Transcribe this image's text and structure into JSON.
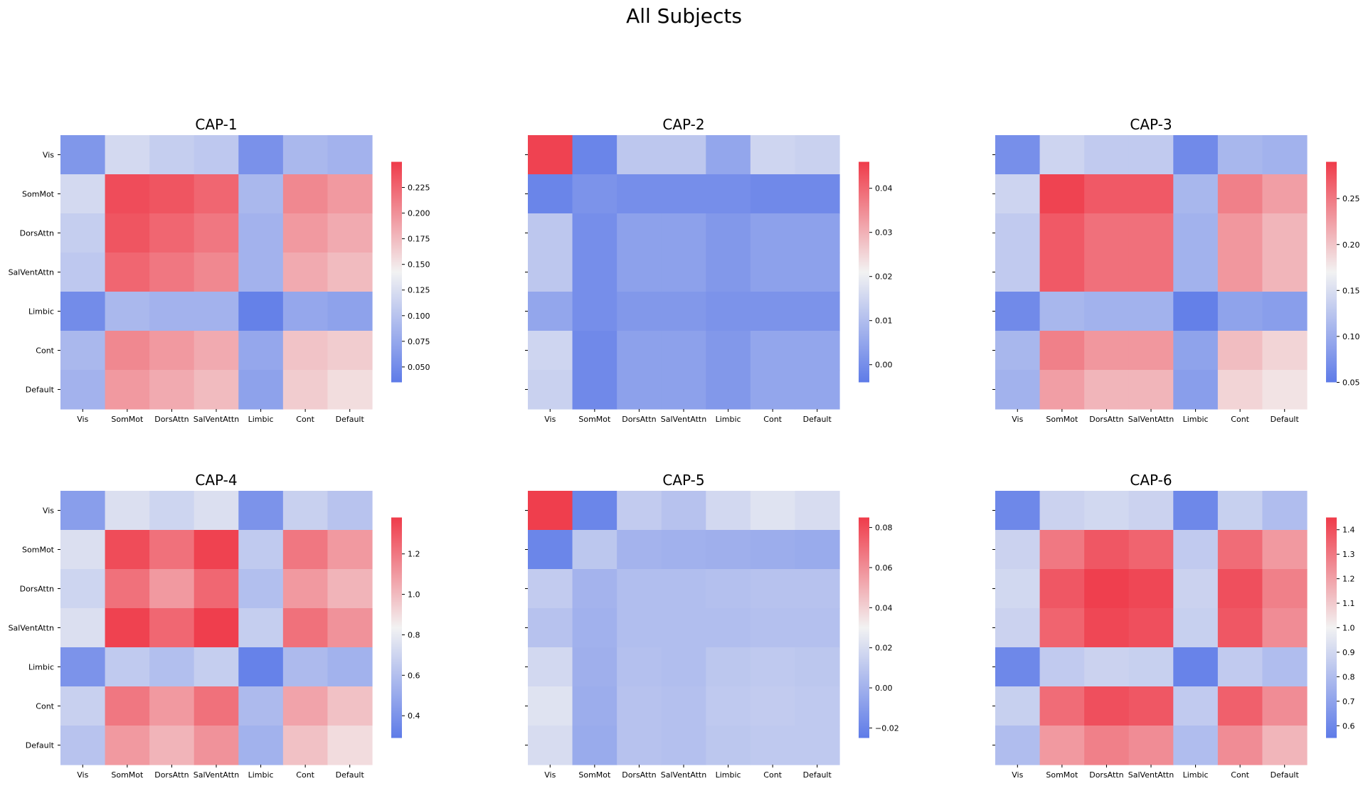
{
  "suptitle": "All Subjects",
  "colormap": {
    "low": "#5e7be8",
    "mid": "#f2f2f2",
    "high": "#ef3b4a"
  },
  "chart_data": [
    {
      "type": "heatmap",
      "title": "CAP-1",
      "labels": [
        "Vis",
        "SomMot",
        "DorsAttn",
        "SalVentAttn",
        "Limbic",
        "Cont",
        "Default"
      ],
      "vmin": 0.035,
      "vmax": 0.25,
      "colorbar_ticks": [
        0.05,
        0.075,
        0.1,
        0.125,
        0.15,
        0.175,
        0.2,
        0.225
      ],
      "colorbar_tick_labels": [
        "0.050",
        "0.075",
        "0.100",
        "0.125",
        "0.150",
        "0.175",
        "0.200",
        "0.225"
      ],
      "values": [
        [
          0.06,
          0.12,
          0.11,
          0.105,
          0.055,
          0.09,
          0.085
        ],
        [
          0.12,
          0.24,
          0.235,
          0.225,
          0.09,
          0.205,
          0.195
        ],
        [
          0.11,
          0.235,
          0.225,
          0.215,
          0.085,
          0.195,
          0.185
        ],
        [
          0.105,
          0.225,
          0.215,
          0.205,
          0.085,
          0.185,
          0.175
        ],
        [
          0.05,
          0.09,
          0.085,
          0.085,
          0.04,
          0.075,
          0.07
        ],
        [
          0.09,
          0.205,
          0.195,
          0.185,
          0.075,
          0.17,
          0.165
        ],
        [
          0.085,
          0.195,
          0.185,
          0.175,
          0.07,
          0.165,
          0.155
        ]
      ]
    },
    {
      "type": "heatmap",
      "title": "CAP-2",
      "labels": [
        "Vis",
        "SomMot",
        "DorsAttn",
        "SalVentAttn",
        "Limbic",
        "Cont",
        "Default"
      ],
      "vmin": -0.004,
      "vmax": 0.046,
      "colorbar_ticks": [
        0.0,
        0.01,
        0.02,
        0.03,
        0.04
      ],
      "colorbar_tick_labels": [
        "0.00",
        "0.01",
        "0.02",
        "0.03",
        "0.04"
      ],
      "values": [
        [
          0.045,
          -0.002,
          0.012,
          0.012,
          0.005,
          0.015,
          0.014
        ],
        [
          -0.002,
          0.001,
          0.0,
          0.0,
          0.0,
          -0.001,
          -0.001
        ],
        [
          0.012,
          0.0,
          0.004,
          0.004,
          0.002,
          0.004,
          0.004
        ],
        [
          0.012,
          0.0,
          0.004,
          0.004,
          0.002,
          0.004,
          0.004
        ],
        [
          0.005,
          0.0,
          0.002,
          0.002,
          0.001,
          0.001,
          0.001
        ],
        [
          0.015,
          -0.001,
          0.004,
          0.004,
          0.002,
          0.005,
          0.005
        ],
        [
          0.014,
          -0.001,
          0.004,
          0.004,
          0.002,
          0.005,
          0.005
        ]
      ]
    },
    {
      "type": "heatmap",
      "title": "CAP-3",
      "labels": [
        "Vis",
        "SomMot",
        "DorsAttn",
        "SalVentAttn",
        "Limbic",
        "Cont",
        "Default"
      ],
      "vmin": 0.05,
      "vmax": 0.29,
      "colorbar_ticks": [
        0.05,
        0.1,
        0.15,
        0.2,
        0.25
      ],
      "colorbar_tick_labels": [
        "0.05",
        "0.10",
        "0.15",
        "0.20",
        "0.25"
      ],
      "values": [
        [
          0.07,
          0.14,
          0.13,
          0.13,
          0.065,
          0.11,
          0.105
        ],
        [
          0.14,
          0.285,
          0.27,
          0.27,
          0.11,
          0.245,
          0.225
        ],
        [
          0.13,
          0.27,
          0.255,
          0.255,
          0.105,
          0.23,
          0.21
        ],
        [
          0.13,
          0.27,
          0.255,
          0.255,
          0.105,
          0.23,
          0.21
        ],
        [
          0.065,
          0.11,
          0.105,
          0.105,
          0.055,
          0.09,
          0.085
        ],
        [
          0.11,
          0.245,
          0.23,
          0.23,
          0.09,
          0.205,
          0.19
        ],
        [
          0.105,
          0.225,
          0.21,
          0.21,
          0.085,
          0.19,
          0.18
        ]
      ]
    },
    {
      "type": "heatmap",
      "title": "CAP-4",
      "labels": [
        "Vis",
        "SomMot",
        "DorsAttn",
        "SalVentAttn",
        "Limbic",
        "Cont",
        "Default"
      ],
      "vmin": 0.29,
      "vmax": 1.38,
      "colorbar_ticks": [
        0.4,
        0.6,
        0.8,
        1.0,
        1.2
      ],
      "colorbar_tick_labels": [
        "0.4",
        "0.6",
        "0.8",
        "1.0",
        "1.2"
      ],
      "values": [
        [
          0.45,
          0.75,
          0.7,
          0.75,
          0.4,
          0.68,
          0.62
        ],
        [
          0.75,
          1.33,
          1.22,
          1.36,
          0.65,
          1.2,
          1.1
        ],
        [
          0.7,
          1.22,
          1.1,
          1.25,
          0.6,
          1.1,
          1.02
        ],
        [
          0.75,
          1.36,
          1.25,
          1.37,
          0.67,
          1.22,
          1.12
        ],
        [
          0.4,
          0.65,
          0.6,
          0.67,
          0.32,
          0.58,
          0.54
        ],
        [
          0.68,
          1.2,
          1.1,
          1.22,
          0.58,
          1.07,
          0.98
        ],
        [
          0.62,
          1.1,
          1.02,
          1.12,
          0.54,
          0.98,
          0.9
        ]
      ]
    },
    {
      "type": "heatmap",
      "title": "CAP-5",
      "labels": [
        "Vis",
        "SomMot",
        "DorsAttn",
        "SalVentAttn",
        "Limbic",
        "Cont",
        "Default"
      ],
      "vmin": -0.025,
      "vmax": 0.085,
      "colorbar_ticks": [
        -0.02,
        0.0,
        0.02,
        0.04,
        0.06,
        0.08
      ],
      "colorbar_tick_labels": [
        "−0.02",
        "0.00",
        "0.02",
        "0.04",
        "0.06",
        "0.08"
      ],
      "values": [
        [
          0.084,
          -0.02,
          0.012,
          0.008,
          0.018,
          0.023,
          0.02
        ],
        [
          -0.02,
          0.01,
          0.001,
          0.0,
          -0.001,
          -0.002,
          -0.003
        ],
        [
          0.012,
          0.001,
          0.006,
          0.006,
          0.007,
          0.008,
          0.008
        ],
        [
          0.008,
          0.0,
          0.006,
          0.006,
          0.006,
          0.007,
          0.007
        ],
        [
          0.018,
          -0.001,
          0.007,
          0.006,
          0.01,
          0.011,
          0.01
        ],
        [
          0.023,
          -0.002,
          0.008,
          0.007,
          0.011,
          0.012,
          0.011
        ],
        [
          0.02,
          -0.003,
          0.008,
          0.007,
          0.01,
          0.011,
          0.011
        ]
      ]
    },
    {
      "type": "heatmap",
      "title": "CAP-6",
      "labels": [
        "Vis",
        "SomMot",
        "DorsAttn",
        "SalVentAttn",
        "Limbic",
        "Cont",
        "Default"
      ],
      "vmin": 0.55,
      "vmax": 1.45,
      "colorbar_ticks": [
        0.6,
        0.7,
        0.8,
        0.9,
        1.0,
        1.1,
        1.2,
        1.3,
        1.4
      ],
      "colorbar_tick_labels": [
        "0.6",
        "0.7",
        "0.8",
        "0.9",
        "1.0",
        "1.1",
        "1.2",
        "1.3",
        "1.4"
      ],
      "values": [
        [
          0.6,
          0.88,
          0.9,
          0.88,
          0.6,
          0.87,
          0.8
        ],
        [
          0.88,
          1.3,
          1.38,
          1.35,
          0.85,
          1.33,
          1.22
        ],
        [
          0.9,
          1.38,
          1.44,
          1.42,
          0.88,
          1.4,
          1.28
        ],
        [
          0.88,
          1.35,
          1.42,
          1.4,
          0.87,
          1.38,
          1.25
        ],
        [
          0.6,
          0.85,
          0.88,
          0.87,
          0.58,
          0.85,
          0.8
        ],
        [
          0.87,
          1.33,
          1.4,
          1.38,
          0.85,
          1.36,
          1.25
        ],
        [
          0.8,
          1.22,
          1.28,
          1.25,
          0.8,
          1.25,
          1.15
        ]
      ]
    }
  ]
}
